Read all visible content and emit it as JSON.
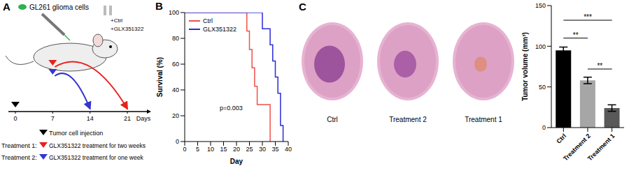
{
  "panel_labels": [
    "A",
    "B",
    "C"
  ],
  "diagram": {
    "cells_label": "GL261 glioma cells",
    "syringes": [
      "+Ctrl",
      "+GLX351322"
    ],
    "timeline": {
      "ticks": [
        0,
        7,
        14,
        21
      ],
      "label": "Days"
    },
    "injection": {
      "text": "Tumor cell injection",
      "day": 0,
      "color": "#000000"
    },
    "treatments": [
      {
        "label": "Treatment 1:",
        "text": "GLX351322 treatment for two weeks",
        "color": "#e8201a",
        "start": 7,
        "end": 21
      },
      {
        "label": "Treatment 2:",
        "text": "GLX351322 treatment for one week",
        "color": "#3535d0",
        "start": 7,
        "end": 14
      }
    ]
  },
  "images": {
    "captions": [
      "Ctrl",
      "Treatment 2",
      "Treatment 1"
    ]
  },
  "chart_data": [
    {
      "type": "line",
      "line_style": "step",
      "x_label": "Day",
      "y_label": "Survival (%)",
      "xlim": [
        0,
        40
      ],
      "xticks": [
        0,
        5,
        10,
        15,
        20,
        25,
        30,
        35,
        40
      ],
      "ylim": [
        0,
        100
      ],
      "yticks": [
        0,
        20,
        40,
        60,
        80,
        100
      ],
      "legend": "upper left",
      "annotations": [
        "p=0.003"
      ],
      "series": [
        {
          "name": "Ctrl",
          "color": "#f0504a",
          "x": [
            0,
            24,
            25,
            26,
            27,
            28,
            33
          ],
          "values": [
            100,
            85.7,
            71.4,
            57.1,
            42.9,
            28.6,
            0
          ]
        },
        {
          "name": "GLX351322",
          "color": "#2b2bd8",
          "x": [
            0,
            30,
            33,
            34,
            35,
            36,
            37,
            38
          ],
          "values": [
            100,
            87.5,
            75,
            62.5,
            50,
            37.5,
            12.5,
            0
          ]
        }
      ]
    },
    {
      "type": "bar",
      "y_label": "Tumor volume (mm³)",
      "categories": [
        "Ctrl",
        "Treatment 2",
        "Treatment 1"
      ],
      "values": [
        95,
        58,
        24
      ],
      "errors": [
        4,
        4,
        4
      ],
      "colors": [
        "#000000",
        "#a6a6a6",
        "#595959"
      ],
      "ylim": [
        0,
        150
      ],
      "yticks": [
        0,
        50,
        100,
        150
      ],
      "significance": [
        {
          "from": "Ctrl",
          "to": "Treatment 2",
          "label": "**"
        },
        {
          "from": "Ctrl",
          "to": "Treatment 1",
          "label": "***"
        },
        {
          "from": "Treatment 2",
          "to": "Treatment 1",
          "label": "**"
        }
      ]
    }
  ]
}
